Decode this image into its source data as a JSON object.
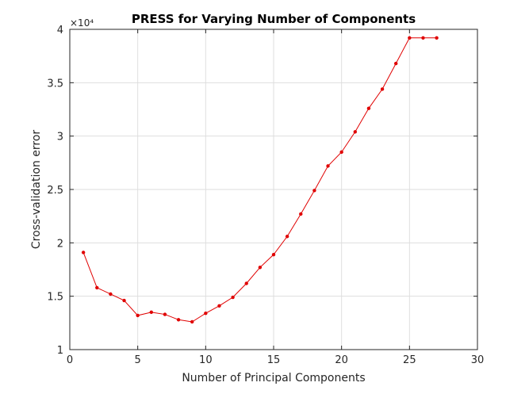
{
  "chart_data": {
    "type": "line",
    "title": "PRESS for Varying Number of Components",
    "xlabel": "Number of Principal Components",
    "ylabel": "Cross-validation error",
    "xlim": [
      0,
      30
    ],
    "ylim": [
      1,
      4
    ],
    "y_multiplier_label": "×10⁴",
    "grid": true,
    "x_ticks": [
      0,
      5,
      10,
      15,
      20,
      25,
      30
    ],
    "x_tick_labels": [
      "0",
      "5",
      "10",
      "15",
      "20",
      "25",
      "30"
    ],
    "y_ticks": [
      1,
      1.5,
      2,
      2.5,
      3,
      3.5,
      4
    ],
    "y_tick_labels": [
      "1",
      "1.5",
      "2",
      "2.5",
      "3",
      "3.5",
      "4"
    ],
    "series": [
      {
        "color": "#e00000",
        "marker": "dot",
        "x": [
          1,
          2,
          3,
          4,
          5,
          6,
          7,
          8,
          9,
          10,
          11,
          12,
          13,
          14,
          15,
          16,
          17,
          18,
          19,
          20,
          21,
          22,
          23,
          24,
          25,
          26,
          27
        ],
        "y": [
          1.91,
          1.58,
          1.52,
          1.46,
          1.32,
          1.35,
          1.33,
          1.28,
          1.26,
          1.34,
          1.41,
          1.49,
          1.62,
          1.77,
          1.89,
          2.06,
          2.27,
          2.49,
          2.72,
          2.85,
          3.04,
          3.26,
          3.44,
          3.68,
          3.92,
          3.92,
          3.92
        ]
      }
    ]
  }
}
